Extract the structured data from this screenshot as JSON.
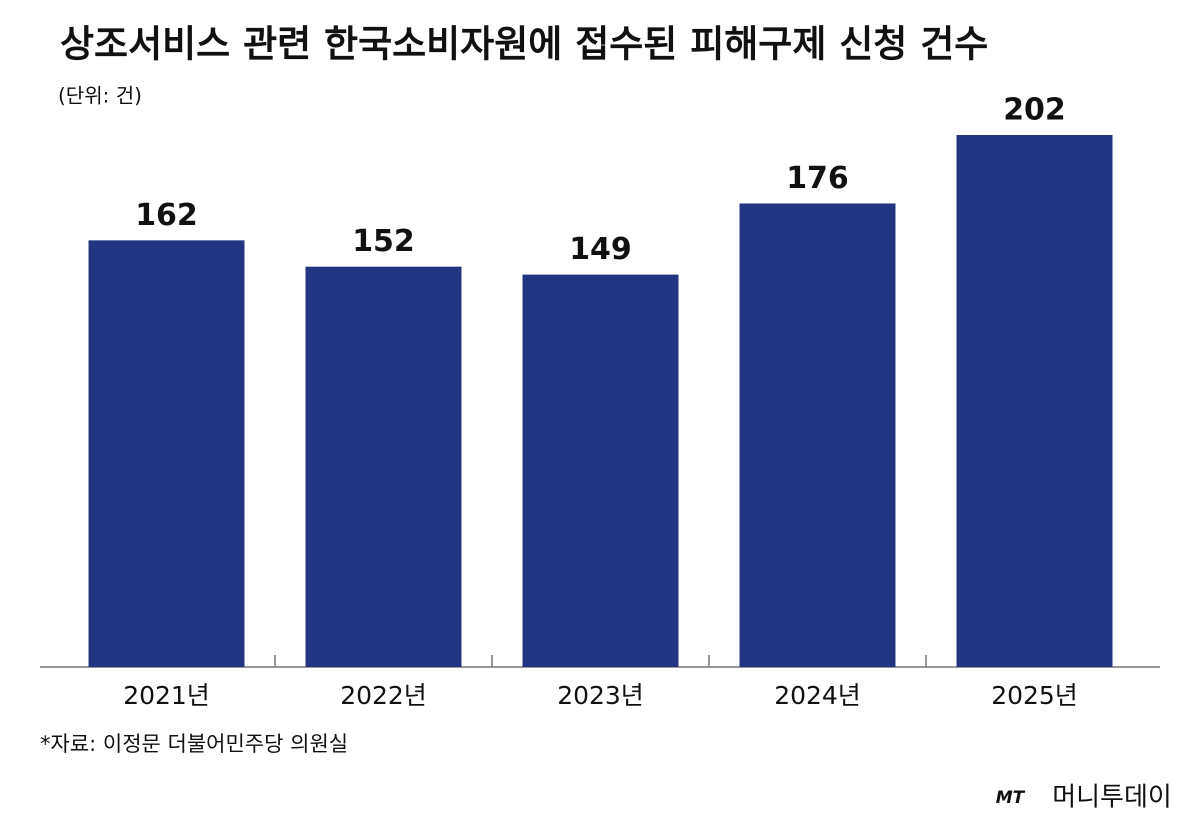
{
  "chart_data": {
    "type": "bar",
    "title": "상조서비스 관련 한국소비자원에 접수된 피해구제 신청 건수",
    "subtitle": "(단위: 건)",
    "categories": [
      "2021년",
      "2022년",
      "2023년",
      "2024년",
      "2025년"
    ],
    "values": [
      162,
      152,
      149,
      176,
      202
    ],
    "color": "#233580",
    "source": "*자료: 이정문 더불어민주당 의원실",
    "logo": {
      "mark": "MT",
      "name": "머니투데이"
    }
  }
}
